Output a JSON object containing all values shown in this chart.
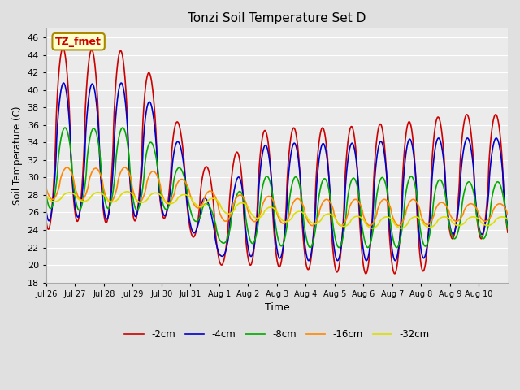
{
  "title": "Tonzi Soil Temperature Set D",
  "xlabel": "Time",
  "ylabel": "Soil Temperature (C)",
  "annotation": "TZ_fmet",
  "annotation_color": "#cc0000",
  "annotation_bg": "#ffffcc",
  "annotation_border": "#aa8800",
  "ylim": [
    18,
    47
  ],
  "yticks": [
    18,
    20,
    22,
    24,
    26,
    28,
    30,
    32,
    34,
    36,
    38,
    40,
    42,
    44,
    46
  ],
  "bg_color": "#e0e0e0",
  "plot_bg": "#ebebeb",
  "grid_color": "#ffffff",
  "series_colors": [
    "#cc0000",
    "#0000cc",
    "#00aa00",
    "#ff8800",
    "#dddd00"
  ],
  "series_labels": [
    "-2cm",
    "-4cm",
    "-8cm",
    "-16cm",
    "-32cm"
  ],
  "line_width": 1.2,
  "days": [
    "Jul 26",
    "Jul 27",
    "Jul 28",
    "Jul 29",
    "Jul 30",
    "Jul 31",
    "Aug 1",
    "Aug 2",
    "Aug 3",
    "Aug 4",
    "Aug 5",
    "Aug 6",
    "Aug 7",
    "Aug 8",
    "Aug 9",
    "Aug 10"
  ]
}
